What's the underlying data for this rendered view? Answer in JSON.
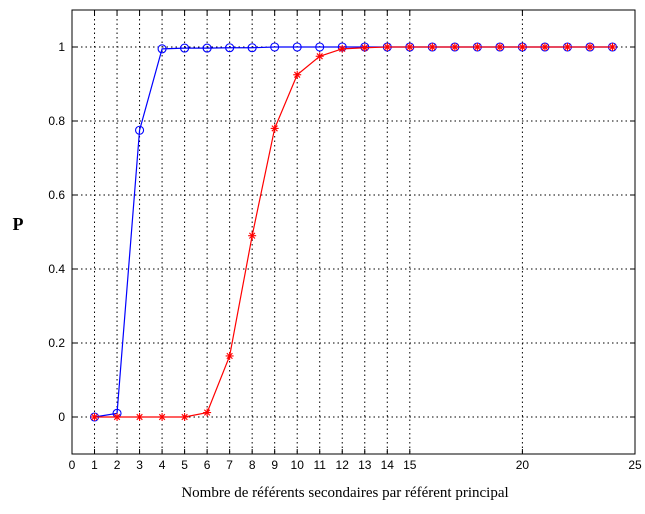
{
  "chart_data": {
    "type": "line",
    "title": "",
    "xlabel": "Nombre de référents secondaires par référent principal",
    "ylabel": "P",
    "xlim": [
      0,
      25
    ],
    "ylim": [
      -0.1,
      1.1
    ],
    "x_ticks": [
      0,
      1,
      2,
      3,
      4,
      5,
      6,
      7,
      8,
      9,
      10,
      11,
      12,
      13,
      14,
      15,
      20,
      25
    ],
    "x_tick_labels": [
      "0",
      "1",
      "2",
      "3",
      "4",
      "5",
      "6",
      "7",
      "8",
      "9",
      "10",
      "11",
      "12",
      "13",
      "14",
      "15",
      "20",
      "25"
    ],
    "y_ticks": [
      0,
      0.2,
      0.4,
      0.6,
      0.8,
      1
    ],
    "y_tick_labels": [
      "0",
      "0.2",
      "0.4",
      "0.6",
      "0.8",
      "1"
    ],
    "grid": true,
    "grid_style": "dotted",
    "series": [
      {
        "color": "#0000ff",
        "marker": "circle",
        "x": [
          1,
          2,
          3,
          4,
          5,
          6,
          7,
          8,
          9,
          10,
          11,
          12,
          13,
          14,
          15,
          16,
          17,
          18,
          19,
          20,
          21,
          22,
          23,
          24
        ],
        "y": [
          0,
          0.01,
          0.775,
          0.995,
          0.997,
          0.997,
          0.998,
          0.998,
          1,
          1,
          1,
          1,
          1,
          1,
          1,
          1,
          1,
          1,
          1,
          1,
          1,
          1,
          1,
          1
        ]
      },
      {
        "color": "#ff0000",
        "marker": "star",
        "x": [
          1,
          2,
          3,
          4,
          5,
          6,
          7,
          8,
          9,
          10,
          11,
          12,
          13,
          14,
          15,
          16,
          17,
          18,
          19,
          20,
          21,
          22,
          23,
          24
        ],
        "y": [
          0,
          0,
          0,
          0,
          0,
          0.012,
          0.165,
          0.49,
          0.78,
          0.925,
          0.975,
          0.995,
          0.998,
          1,
          1,
          1,
          1,
          1,
          1,
          1,
          1,
          1,
          1,
          1
        ]
      }
    ]
  }
}
